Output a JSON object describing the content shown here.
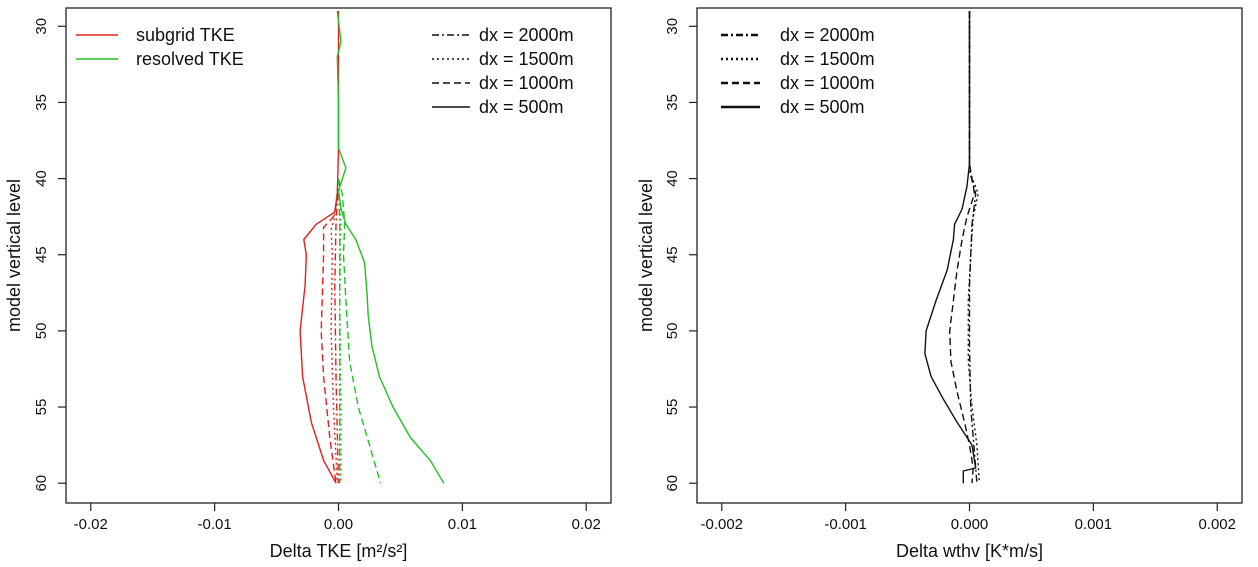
{
  "chart_data": [
    {
      "type": "line",
      "title": "",
      "xlabel": "Delta TKE [m²/s²]",
      "ylabel": "model vertical level",
      "xlim": [
        -0.022,
        0.022
      ],
      "ylim": [
        61.3,
        28.8
      ],
      "y_inverted": true,
      "xticks": [
        -0.02,
        -0.01,
        0.0,
        0.01,
        0.02
      ],
      "xtick_labels": [
        "-0.02",
        "-0.01",
        "0.00",
        "0.01",
        "0.02"
      ],
      "yticks": [
        30,
        35,
        40,
        45,
        50,
        55,
        60
      ],
      "ytick_labels": [
        "30",
        "35",
        "40",
        "45",
        "50",
        "55",
        "60"
      ],
      "legends": [
        {
          "position": "top-left",
          "entries": [
            {
              "label": "subgrid TKE",
              "color": "#e02020",
              "dash": "solid"
            },
            {
              "label": "resolved TKE",
              "color": "#22c022",
              "dash": "solid"
            }
          ]
        },
        {
          "position": "top-right",
          "entries": [
            {
              "label": "dx = 2000m",
              "color": "#111111",
              "dash": "dashdot"
            },
            {
              "label": "dx = 1500m",
              "color": "#111111",
              "dash": "dotted"
            },
            {
              "label": "dx = 1000m",
              "color": "#111111",
              "dash": "dashed"
            },
            {
              "label": "dx = 500m",
              "color": "#111111",
              "dash": "solid"
            }
          ]
        }
      ],
      "series": [
        {
          "group": "subgrid TKE",
          "dx": "dx = 500m",
          "color": "#e02020",
          "dash": "solid",
          "points": [
            [
              0.0,
              29
            ],
            [
              0.0,
              38
            ],
            [
              -0.0001,
              41
            ],
            [
              -0.0003,
              42.2
            ],
            [
              -0.0018,
              43
            ],
            [
              -0.0028,
              44
            ],
            [
              -0.0026,
              45
            ],
            [
              -0.0027,
              47
            ],
            [
              -0.0031,
              50
            ],
            [
              -0.0029,
              53
            ],
            [
              -0.0022,
              56
            ],
            [
              -0.0012,
              58.5
            ],
            [
              -0.0002,
              60
            ]
          ]
        },
        {
          "group": "subgrid TKE",
          "dx": "dx = 1000m",
          "color": "#e02020",
          "dash": "dashed",
          "points": [
            [
              0.0,
              41
            ],
            [
              -0.0004,
              42.5
            ],
            [
              -0.0012,
              43.2
            ],
            [
              -0.0012,
              45
            ],
            [
              -0.0014,
              50
            ],
            [
              -0.0012,
              53
            ],
            [
              -0.0007,
              57
            ],
            [
              -0.0002,
              60
            ]
          ]
        },
        {
          "group": "subgrid TKE",
          "dx": "dx = 1500m",
          "color": "#e02020",
          "dash": "dotted",
          "points": [
            [
              0.0,
              40
            ],
            [
              -0.0003,
              42.5
            ],
            [
              -0.0006,
              43.3
            ],
            [
              -0.0005,
              45
            ],
            [
              -0.0006,
              50
            ],
            [
              -0.0004,
              55
            ],
            [
              -0.0001,
              60
            ]
          ]
        },
        {
          "group": "subgrid TKE",
          "dx": "dx = 2000m",
          "color": "#e02020",
          "dash": "dashdot",
          "points": [
            [
              0.0,
              40
            ],
            [
              -0.0002,
              43
            ],
            [
              -0.0003,
              47
            ],
            [
              -0.0002,
              53
            ],
            [
              0.0,
              60
            ]
          ]
        },
        {
          "group": "resolved TKE",
          "dx": "dx = 500m",
          "color": "#22c022",
          "dash": "solid",
          "points": [
            [
              -0.0001,
              29
            ],
            [
              0.0002,
              31
            ],
            [
              -0.0001,
              32
            ],
            [
              0.0,
              35
            ],
            [
              0.0,
              38
            ],
            [
              0.0006,
              39.3
            ],
            [
              0.0,
              40.8
            ],
            [
              0.0002,
              42
            ],
            [
              0.0006,
              43
            ],
            [
              0.0014,
              44
            ],
            [
              0.0021,
              45.5
            ],
            [
              0.0023,
              47.5
            ],
            [
              0.0024,
              49
            ],
            [
              0.0027,
              51
            ],
            [
              0.0033,
              53
            ],
            [
              0.0044,
              55
            ],
            [
              0.0058,
              57
            ],
            [
              0.0074,
              58.5
            ],
            [
              0.0085,
              60
            ]
          ]
        },
        {
          "group": "resolved TKE",
          "dx": "dx = 1000m",
          "color": "#22c022",
          "dash": "dashed",
          "points": [
            [
              0.0,
              40
            ],
            [
              0.0003,
              41
            ],
            [
              0.0004,
              42
            ],
            [
              0.0005,
              43
            ],
            [
              0.0004,
              45
            ],
            [
              0.0006,
              48
            ],
            [
              0.0009,
              52
            ],
            [
              0.0016,
              55
            ],
            [
              0.0025,
              57.5
            ],
            [
              0.0034,
              60
            ]
          ]
        },
        {
          "group": "resolved TKE",
          "dx": "dx = 1500m",
          "color": "#22c022",
          "dash": "dotted",
          "points": [
            [
              0.0,
              40
            ],
            [
              0.0002,
              43
            ],
            [
              0.0001,
              48
            ],
            [
              0.0002,
              55
            ],
            [
              0.0002,
              60
            ]
          ]
        },
        {
          "group": "resolved TKE",
          "dx": "dx = 2000m",
          "color": "#22c022",
          "dash": "dashdot",
          "points": [
            [
              0.0,
              40
            ],
            [
              0.0001,
              43
            ],
            [
              0.0001,
              50
            ],
            [
              0.0001,
              60
            ]
          ]
        }
      ]
    },
    {
      "type": "line",
      "title": "",
      "xlabel": "Delta wthv [K*m/s]",
      "ylabel": "model vertical level",
      "xlim": [
        -0.0022,
        0.0022
      ],
      "ylim": [
        61.3,
        28.8
      ],
      "y_inverted": true,
      "xticks": [
        -0.002,
        -0.001,
        0.0,
        0.001,
        0.002
      ],
      "xtick_labels": [
        "-0.002",
        "-0.001",
        "0.000",
        "0.001",
        "0.002"
      ],
      "yticks": [
        30,
        35,
        40,
        45,
        50,
        55,
        60
      ],
      "ytick_labels": [
        "30",
        "35",
        "40",
        "45",
        "50",
        "55",
        "60"
      ],
      "legends": [
        {
          "position": "top-left",
          "entries": [
            {
              "label": "dx = 2000m",
              "color": "#111111",
              "dash": "dashdot"
            },
            {
              "label": "dx = 1500m",
              "color": "#111111",
              "dash": "dotted"
            },
            {
              "label": "dx = 1000m",
              "color": "#111111",
              "dash": "dashed"
            },
            {
              "label": "dx = 500m",
              "color": "#111111",
              "dash": "solid"
            }
          ]
        }
      ],
      "series": [
        {
          "dx": "dx = 500m",
          "color": "#111111",
          "dash": "solid",
          "points": [
            [
              0.0,
              29
            ],
            [
              0.0,
              39
            ],
            [
              -2e-05,
              40.5
            ],
            [
              -6e-05,
              42
            ],
            [
              -0.00012,
              43
            ],
            [
              -0.00013,
              44
            ],
            [
              -0.00018,
              46
            ],
            [
              -0.00027,
              48
            ],
            [
              -0.00035,
              50
            ],
            [
              -0.00036,
              51.5
            ],
            [
              -0.00031,
              53
            ],
            [
              -0.00021,
              54.5
            ],
            [
              -0.0001,
              56
            ],
            [
              2e-05,
              57.5
            ],
            [
              5e-05,
              59
            ],
            [
              -5e-05,
              59.2
            ],
            [
              -5e-05,
              60
            ]
          ]
        },
        {
          "dx": "dx = 1000m",
          "color": "#111111",
          "dash": "dashed",
          "points": [
            [
              0.0,
              29
            ],
            [
              0.0,
              39
            ],
            [
              4e-05,
              41
            ],
            [
              -2e-05,
              42.5
            ],
            [
              -6e-05,
              44
            ],
            [
              -0.0001,
              46
            ],
            [
              -0.00013,
              48
            ],
            [
              -0.00016,
              50
            ],
            [
              -0.00015,
              52
            ],
            [
              -0.0001,
              54
            ],
            [
              -4e-05,
              56
            ],
            [
              0.0,
              57.5
            ],
            [
              3e-05,
              59
            ],
            [
              2e-05,
              60
            ]
          ]
        },
        {
          "dx": "dx = 1500m",
          "color": "#111111",
          "dash": "dotted",
          "points": [
            [
              0.0,
              29
            ],
            [
              0.0,
              39.5
            ],
            [
              7e-05,
              41
            ],
            [
              3e-05,
              42.5
            ],
            [
              1e-05,
              45
            ],
            [
              -1e-05,
              48
            ],
            [
              -1e-05,
              52
            ],
            [
              2e-05,
              55
            ],
            [
              6e-05,
              57.5
            ],
            [
              8e-05,
              60
            ]
          ]
        },
        {
          "dx": "dx = 2000m",
          "color": "#111111",
          "dash": "dashdot",
          "points": [
            [
              0.0,
              29
            ],
            [
              0.0,
              39.5
            ],
            [
              5e-05,
              41
            ],
            [
              2e-05,
              43
            ],
            [
              0.0,
              47
            ],
            [
              0.0,
              51
            ],
            [
              1e-05,
              55
            ],
            [
              4e-05,
              58
            ],
            [
              6e-05,
              60
            ]
          ]
        }
      ]
    }
  ]
}
